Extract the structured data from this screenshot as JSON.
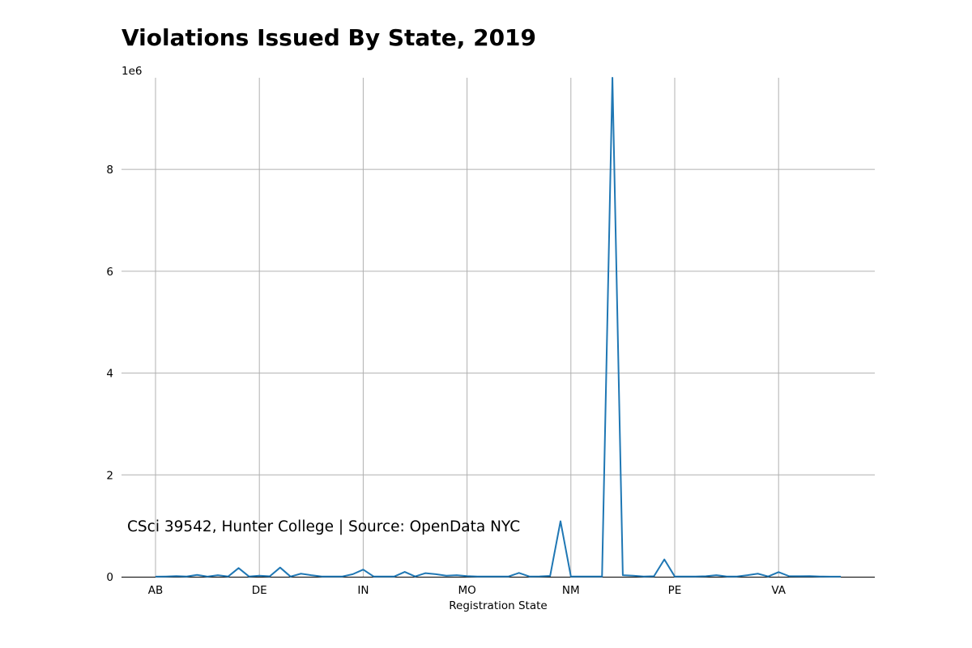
{
  "chart_data": {
    "type": "line",
    "title": "Violations Issued By State, 2019",
    "xlabel": "Registration State",
    "ylabel": "",
    "y_offset_label": "1e6",
    "annotation": "CSci 39542, Hunter College | Source: OpenData NYC",
    "x_tick_labels": [
      "AB",
      "DE",
      "IN",
      "MO",
      "NM",
      "PE",
      "VA"
    ],
    "x_tick_indices": [
      0,
      10,
      20,
      30,
      40,
      50,
      60
    ],
    "y_ticks": [
      0,
      2,
      4,
      6,
      8
    ],
    "ylim": [
      0,
      9.8
    ],
    "grid": true,
    "series": [
      {
        "color": "#1f77b4",
        "values": [
          0.002,
          0.005,
          0.012,
          0.004,
          0.035,
          0.003,
          0.03,
          0.005,
          0.17,
          0.005,
          0.02,
          0.008,
          0.18,
          0.003,
          0.06,
          0.03,
          0.005,
          0.005,
          0.005,
          0.05,
          0.14,
          0.005,
          0.005,
          0.005,
          0.095,
          0.005,
          0.07,
          0.05,
          0.02,
          0.03,
          0.012,
          0.005,
          0.003,
          0.003,
          0.005,
          0.075,
          0.005,
          0.006,
          0.015,
          1.09,
          0.005,
          0.005,
          0.005,
          0.005,
          9.8,
          0.03,
          0.02,
          0.005,
          0.01,
          0.34,
          0.005,
          0.005,
          0.005,
          0.01,
          0.03,
          0.005,
          0.005,
          0.03,
          0.06,
          0.005,
          0.09,
          0.012,
          0.01,
          0.012,
          0.005,
          0.002,
          0.002
        ]
      }
    ]
  }
}
